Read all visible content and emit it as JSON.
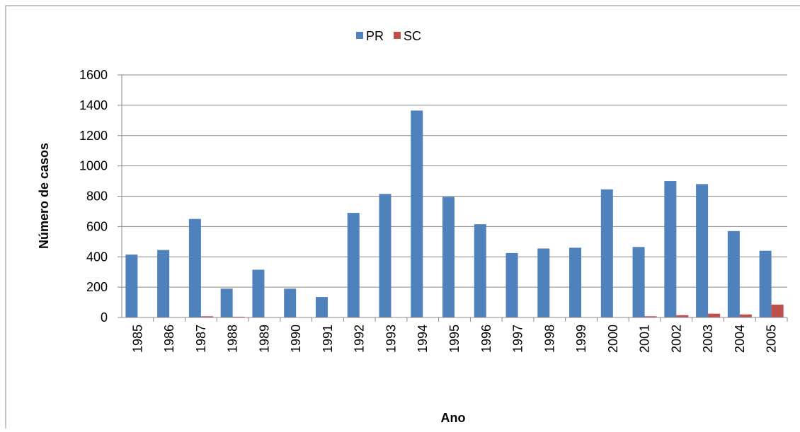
{
  "chart_data": {
    "type": "bar",
    "x_label": "Ano",
    "y_label": "Número de casos",
    "categories": [
      "1985",
      "1986",
      "1987",
      "1988",
      "1989",
      "1990",
      "1991",
      "1992",
      "1993",
      "1994",
      "1995",
      "1996",
      "1997",
      "1998",
      "1999",
      "2000",
      "2001",
      "2002",
      "2003",
      "2004",
      "2005"
    ],
    "series": [
      {
        "name": "PR",
        "color": "#4f81bd",
        "values": [
          415,
          445,
          650,
          190,
          315,
          190,
          135,
          690,
          815,
          1365,
          795,
          615,
          425,
          455,
          460,
          845,
          465,
          900,
          880,
          570,
          440
        ]
      },
      {
        "name": "SC",
        "color": "#c0504d",
        "values": [
          0,
          0,
          8,
          5,
          0,
          0,
          0,
          0,
          0,
          0,
          0,
          0,
          0,
          0,
          0,
          0,
          8,
          15,
          25,
          20,
          85
        ]
      }
    ],
    "ylim": [
      0,
      1600
    ],
    "yticks": [
      0,
      200,
      400,
      600,
      800,
      1000,
      1200,
      1400,
      1600
    ],
    "grid": true,
    "legend": "top"
  }
}
